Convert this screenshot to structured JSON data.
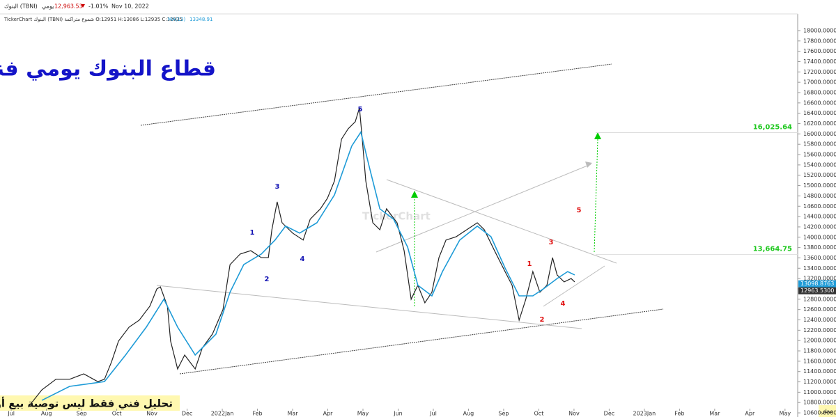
{
  "header": {
    "symbol": "البنوك (TBNI)",
    "period": "يومي",
    "price": "12,963.53",
    "change": "-1.01%",
    "date": "Nov 10, 2022",
    "info": "TickerChart البنوك (TBNI) شموع متراكمة O:12951 H:13086 L:12935 C:12935",
    "ma_name": "MA(13)",
    "ma_value": "13348.91"
  },
  "chart_data": {
    "type": "line",
    "title": "قطاع البنوك يومي فنياً",
    "disclaimer": "تحليل فني فقط ليس توصية بيع أو شراء",
    "watermark": "TickerChart",
    "corner": "محلي",
    "xlim": [
      -0.32,
      22.36
    ],
    "xticks": [
      {
        "value": 0,
        "label": "Jul"
      },
      {
        "value": 1,
        "label": "Aug"
      },
      {
        "value": 2,
        "label": "Sep"
      },
      {
        "value": 3,
        "label": "Oct"
      },
      {
        "value": 4,
        "label": "Nov"
      },
      {
        "value": 5,
        "label": "Dec"
      },
      {
        "value": 6,
        "label": "2022Jan"
      },
      {
        "value": 7,
        "label": "Feb"
      },
      {
        "value": 8,
        "label": "Mar"
      },
      {
        "value": 9,
        "label": "Apr"
      },
      {
        "value": 10,
        "label": "May"
      },
      {
        "value": 11,
        "label": "Jun"
      },
      {
        "value": 12,
        "label": "Jul"
      },
      {
        "value": 13,
        "label": "Aug"
      },
      {
        "value": 14,
        "label": "Sep"
      },
      {
        "value": 15,
        "label": "Oct"
      },
      {
        "value": 16,
        "label": "Nov"
      },
      {
        "value": 17,
        "label": "Dec"
      },
      {
        "value": 18,
        "label": "2023Jan"
      },
      {
        "value": 19,
        "label": "Feb"
      },
      {
        "value": 20,
        "label": "Mar"
      },
      {
        "value": 21,
        "label": "Apr"
      },
      {
        "value": 22,
        "label": "May"
      }
    ],
    "ylim": [
      10520,
      18296
    ],
    "yticks": [
      {
        "value": 10600,
        "label": "10600.0000"
      },
      {
        "value": 10800,
        "label": "10800.0000"
      },
      {
        "value": 11000,
        "label": "11000.0000"
      },
      {
        "value": 11200,
        "label": "11200.0000"
      },
      {
        "value": 11400,
        "label": "11400.0000"
      },
      {
        "value": 11600,
        "label": "11600.0000"
      },
      {
        "value": 11800,
        "label": "11800.0000"
      },
      {
        "value": 12000,
        "label": "12000.0000"
      },
      {
        "value": 12200,
        "label": "12200.0000"
      },
      {
        "value": 12400,
        "label": "12400.0000"
      },
      {
        "value": 12600,
        "label": "12600.0000"
      },
      {
        "value": 12800,
        "label": "12800.0000"
      },
      {
        "value": 13000,
        "label": "13000.0000"
      },
      {
        "value": 13200,
        "label": "13200.0000"
      },
      {
        "value": 13400,
        "label": "13400.0000"
      },
      {
        "value": 13600,
        "label": "13600.0000"
      },
      {
        "value": 13800,
        "label": "13800.0000"
      },
      {
        "value": 14000,
        "label": "14000.0000"
      },
      {
        "value": 14200,
        "label": "14200.0000"
      },
      {
        "value": 14400,
        "label": "14400.0000"
      },
      {
        "value": 14600,
        "label": "14600.0000"
      },
      {
        "value": 14800,
        "label": "14800.0000"
      },
      {
        "value": 15000,
        "label": "15000.0000"
      },
      {
        "value": 15200,
        "label": "15200.0000"
      },
      {
        "value": 15400,
        "label": "15400.0000"
      },
      {
        "value": 15600,
        "label": "15600.0000"
      },
      {
        "value": 15800,
        "label": "15800.0000"
      },
      {
        "value": 16000,
        "label": "16000.0000"
      },
      {
        "value": 16200,
        "label": "16200.0000"
      },
      {
        "value": 16400,
        "label": "16400.0000"
      },
      {
        "value": 16600,
        "label": "16600.0000"
      },
      {
        "value": 16800,
        "label": "16800.0000"
      },
      {
        "value": 17000,
        "label": "17000.0000"
      },
      {
        "value": 17200,
        "label": "17200.0000"
      },
      {
        "value": 17400,
        "label": "17400.0000"
      },
      {
        "value": 17600,
        "label": "17600.0000"
      },
      {
        "value": 17800,
        "label": "17800.0000"
      },
      {
        "value": 18000,
        "label": "18000.0000"
      }
    ],
    "series": [
      {
        "name": "TBNI",
        "color": "#222222",
        "x": [
          0.48,
          0.87,
          1.27,
          1.66,
          2.06,
          2.46,
          2.65,
          2.85,
          3.05,
          3.35,
          3.64,
          3.94,
          4.14,
          4.24,
          4.44,
          4.53,
          4.73,
          4.93,
          5.23,
          5.43,
          5.72,
          6.02,
          6.22,
          6.51,
          6.81,
          7.11,
          7.31,
          7.41,
          7.56,
          7.7,
          8.0,
          8.3,
          8.5,
          8.79,
          8.99,
          9.19,
          9.39,
          9.58,
          9.78,
          9.9,
          9.98,
          10.08,
          10.28,
          10.48,
          10.67,
          10.97,
          11.17,
          11.37,
          11.56,
          11.76,
          11.96,
          12.16,
          12.36,
          12.65,
          12.95,
          13.25,
          13.45,
          13.74,
          14.04,
          14.24,
          14.44,
          14.63,
          14.83,
          15.03,
          15.23,
          15.39,
          15.52,
          15.72,
          15.92,
          16.02
        ],
        "values": [
          10710,
          11045,
          11250,
          11250,
          11355,
          11205,
          11250,
          11585,
          11990,
          12260,
          12395,
          12665,
          13000,
          13040,
          12665,
          11990,
          11450,
          11720,
          11450,
          11855,
          12125,
          12600,
          13470,
          13675,
          13740,
          13605,
          13605,
          14145,
          14685,
          14280,
          14080,
          13945,
          14350,
          14550,
          14755,
          15090,
          15900,
          16100,
          16235,
          16505,
          15900,
          15090,
          14280,
          14145,
          14550,
          14280,
          13740,
          12800,
          13070,
          12730,
          12935,
          13605,
          13945,
          14010,
          14145,
          14280,
          14145,
          13740,
          13335,
          13070,
          12395,
          12800,
          13335,
          12935,
          13070,
          13605,
          13270,
          13135,
          13200,
          13135
        ]
      },
      {
        "name": "MA(13)",
        "color": "#1e9bd7",
        "x": [
          0.87,
          1.66,
          2.65,
          3.25,
          3.84,
          4.34,
          4.73,
          5.23,
          5.82,
          6.22,
          6.61,
          7.11,
          7.5,
          7.8,
          8.2,
          8.69,
          9.19,
          9.68,
          9.94,
          10.18,
          10.48,
          10.87,
          11.27,
          11.56,
          11.96,
          12.26,
          12.75,
          13.25,
          13.64,
          14.04,
          14.44,
          14.83,
          15.13,
          15.52,
          15.82,
          16.02
        ],
        "values": [
          10843,
          11113,
          11205,
          11720,
          12260,
          12800,
          12260,
          11720,
          12125,
          12935,
          13470,
          13675,
          13945,
          14215,
          14080,
          14280,
          14820,
          15765,
          16035,
          15360,
          14550,
          14350,
          13810,
          13070,
          12865,
          13335,
          13945,
          14215,
          14010,
          13405,
          12865,
          12865,
          13000,
          13200,
          13335,
          13270
        ]
      }
    ],
    "price_levels": [
      {
        "value": 16025.64,
        "label": "16,025.64"
      },
      {
        "value": 13664.75,
        "label": "13,664.75"
      }
    ],
    "last_values": [
      {
        "value": 13098.8763,
        "label": "13098.8763"
      },
      {
        "value": 12963.53,
        "label": "12963.5300"
      }
    ],
    "waves_blue": [
      "5",
      "3",
      "1",
      "2",
      "4"
    ],
    "waves_red": [
      "1",
      "2",
      "3",
      "4",
      "5"
    ]
  }
}
